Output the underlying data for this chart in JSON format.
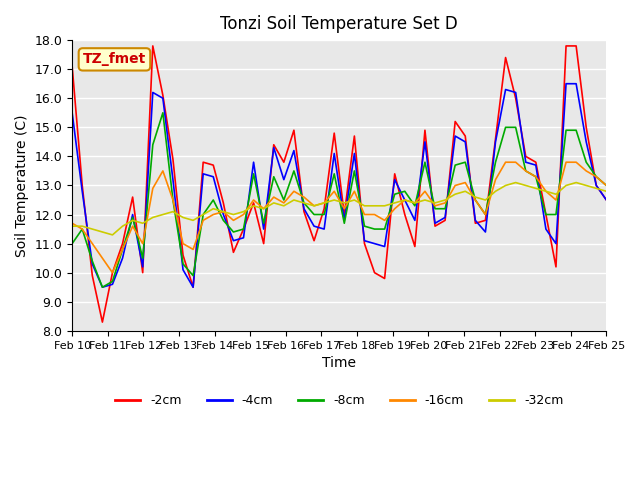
{
  "title": "Tonzi Soil Temperature Set D",
  "xlabel": "Time",
  "ylabel": "Soil Temperature (C)",
  "ylim": [
    8.0,
    18.0
  ],
  "xlim": [
    0,
    15
  ],
  "yticks": [
    8.0,
    9.0,
    10.0,
    11.0,
    12.0,
    13.0,
    14.0,
    15.0,
    16.0,
    17.0,
    18.0
  ],
  "xtick_labels": [
    "Feb 10",
    "Feb 11",
    "Feb 12",
    "Feb 13",
    "Feb 14",
    "Feb 15",
    "Feb 16",
    "Feb 17",
    "Feb 18",
    "Feb 19",
    "Feb 20",
    "Feb 21",
    "Feb 22",
    "Feb 23",
    "Feb 24",
    "Feb 25"
  ],
  "annotation_text": "TZ_fmet",
  "annotation_bg": "#ffffcc",
  "annotation_fg": "#cc0000",
  "bg_color": "#e8e8e8",
  "lines": {
    "-2cm": {
      "color": "#ff0000",
      "y": [
        17.1,
        13.0,
        9.9,
        8.3,
        10.0,
        11.0,
        12.6,
        10.0,
        17.8,
        16.1,
        13.9,
        10.6,
        9.5,
        13.8,
        13.7,
        12.4,
        10.7,
        11.5,
        12.4,
        11.0,
        14.4,
        13.8,
        14.9,
        12.1,
        11.1,
        12.2,
        14.8,
        12.0,
        14.7,
        11.0,
        10.0,
        9.8,
        13.4,
        12.0,
        10.9,
        14.9,
        11.6,
        11.8,
        15.2,
        14.7,
        11.7,
        11.8,
        14.6,
        17.4,
        16.0,
        14.0,
        13.8,
        12.0,
        10.2,
        17.8,
        17.8,
        15.0,
        13.0,
        12.5
      ]
    },
    "-4cm": {
      "color": "#0000ff",
      "y": [
        15.5,
        12.8,
        10.3,
        9.5,
        9.6,
        10.5,
        12.0,
        10.2,
        16.2,
        16.0,
        13.2,
        10.1,
        9.5,
        13.4,
        13.3,
        12.0,
        11.1,
        11.2,
        13.8,
        11.5,
        14.3,
        13.2,
        14.2,
        12.2,
        11.6,
        11.5,
        14.1,
        11.8,
        14.1,
        11.1,
        11.0,
        10.9,
        13.2,
        12.5,
        11.8,
        14.5,
        11.7,
        11.9,
        14.7,
        14.5,
        11.8,
        11.4,
        14.5,
        16.3,
        16.2,
        13.8,
        13.7,
        11.5,
        11.0,
        16.5,
        16.5,
        14.5,
        13.0,
        12.5
      ]
    },
    "-8cm": {
      "color": "#00aa00",
      "y": [
        11.0,
        11.5,
        10.4,
        9.5,
        9.7,
        10.8,
        11.9,
        10.5,
        14.4,
        15.5,
        12.5,
        10.3,
        9.9,
        12.0,
        12.5,
        11.8,
        11.4,
        11.5,
        13.4,
        11.7,
        13.3,
        12.5,
        13.5,
        12.4,
        12.0,
        12.0,
        13.4,
        11.7,
        13.5,
        11.6,
        11.5,
        11.5,
        12.7,
        12.8,
        12.3,
        13.8,
        12.2,
        12.2,
        13.7,
        13.8,
        12.5,
        12.0,
        13.8,
        15.0,
        15.0,
        13.5,
        13.3,
        12.0,
        12.0,
        14.9,
        14.9,
        13.8,
        13.3,
        13.0
      ]
    },
    "-16cm": {
      "color": "#ff8800",
      "y": [
        11.7,
        11.5,
        11.0,
        10.5,
        10.0,
        10.8,
        11.6,
        11.0,
        12.9,
        13.5,
        12.5,
        11.0,
        10.8,
        11.8,
        12.0,
        12.1,
        11.8,
        12.0,
        12.5,
        12.2,
        12.6,
        12.4,
        12.8,
        12.6,
        12.3,
        12.4,
        12.8,
        12.2,
        12.8,
        12.0,
        12.0,
        11.8,
        12.2,
        12.5,
        12.4,
        12.8,
        12.3,
        12.4,
        13.0,
        13.1,
        12.5,
        12.0,
        13.2,
        13.8,
        13.8,
        13.5,
        13.3,
        12.8,
        12.5,
        13.8,
        13.8,
        13.5,
        13.3,
        13.0
      ]
    },
    "-32cm": {
      "color": "#cccc00",
      "y": [
        11.6,
        11.6,
        11.5,
        11.4,
        11.3,
        11.6,
        11.8,
        11.7,
        11.9,
        12.0,
        12.1,
        11.9,
        11.8,
        12.0,
        12.2,
        12.1,
        12.0,
        12.1,
        12.3,
        12.2,
        12.4,
        12.3,
        12.5,
        12.4,
        12.3,
        12.4,
        12.5,
        12.4,
        12.5,
        12.3,
        12.3,
        12.3,
        12.4,
        12.5,
        12.4,
        12.5,
        12.4,
        12.5,
        12.7,
        12.8,
        12.6,
        12.5,
        12.8,
        13.0,
        13.1,
        13.0,
        12.9,
        12.8,
        12.7,
        13.0,
        13.1,
        13.0,
        12.9,
        12.8
      ]
    }
  },
  "legend_labels": [
    "-2cm",
    "-4cm",
    "-8cm",
    "-16cm",
    "-32cm"
  ],
  "legend_colors": [
    "#ff0000",
    "#0000ff",
    "#00aa00",
    "#ff8800",
    "#cccc00"
  ]
}
